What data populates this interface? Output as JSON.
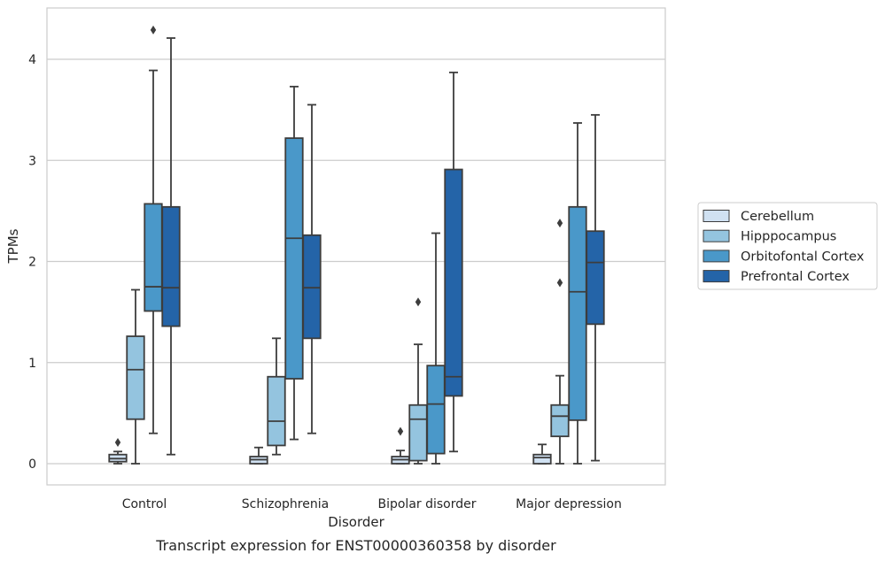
{
  "chart_data": {
    "type": "box",
    "title": "",
    "caption": "Transcript expression for ENST00000360358 by disorder",
    "xlabel": "Disorder",
    "ylabel": "TPMs",
    "ylim": [
      -0.21,
      4.52
    ],
    "yticks": [
      0,
      1,
      2,
      3,
      4
    ],
    "grid": true,
    "legend_position": "right",
    "categories": [
      "Control",
      "Schizophrenia",
      "Bipolar disorder",
      "Major depression"
    ],
    "series": [
      {
        "name": "Cerebellum",
        "color": "#d0e1f2",
        "boxes": [
          {
            "whisker_low": 0.0,
            "q1": 0.02,
            "median": 0.05,
            "q3": 0.09,
            "whisker_high": 0.12,
            "outliers": [
              0.21
            ]
          },
          {
            "whisker_low": 0.0,
            "q1": 0.0,
            "median": 0.04,
            "q3": 0.07,
            "whisker_high": 0.16,
            "outliers": []
          },
          {
            "whisker_low": 0.0,
            "q1": 0.0,
            "median": 0.04,
            "q3": 0.07,
            "whisker_high": 0.13,
            "outliers": [
              0.32
            ]
          },
          {
            "whisker_low": 0.0,
            "q1": 0.0,
            "median": 0.06,
            "q3": 0.09,
            "whisker_high": 0.19,
            "outliers": []
          }
        ]
      },
      {
        "name": "Hipppocampus",
        "color": "#94c4df",
        "boxes": [
          {
            "whisker_low": 0.0,
            "q1": 0.44,
            "median": 0.93,
            "q3": 1.26,
            "whisker_high": 1.72,
            "outliers": []
          },
          {
            "whisker_low": 0.09,
            "q1": 0.18,
            "median": 0.42,
            "q3": 0.86,
            "whisker_high": 1.24,
            "outliers": []
          },
          {
            "whisker_low": 0.0,
            "q1": 0.03,
            "median": 0.44,
            "q3": 0.58,
            "whisker_high": 1.18,
            "outliers": [
              1.6
            ]
          },
          {
            "whisker_low": 0.0,
            "q1": 0.27,
            "median": 0.47,
            "q3": 0.58,
            "whisker_high": 0.87,
            "outliers": [
              1.79,
              2.38
            ]
          }
        ]
      },
      {
        "name": "Orbitofontal Cortex",
        "color": "#4a98c9",
        "boxes": [
          {
            "whisker_low": 0.3,
            "q1": 1.51,
            "median": 1.75,
            "q3": 2.57,
            "whisker_high": 3.89,
            "outliers": [
              4.29
            ]
          },
          {
            "whisker_low": 0.24,
            "q1": 0.84,
            "median": 2.23,
            "q3": 3.22,
            "whisker_high": 3.73,
            "outliers": []
          },
          {
            "whisker_low": 0.0,
            "q1": 0.1,
            "median": 0.59,
            "q3": 0.97,
            "whisker_high": 2.28,
            "outliers": []
          },
          {
            "whisker_low": 0.0,
            "q1": 0.43,
            "median": 1.7,
            "q3": 2.54,
            "whisker_high": 3.37,
            "outliers": []
          }
        ]
      },
      {
        "name": "Prefrontal Cortex",
        "color": "#2464a8",
        "boxes": [
          {
            "whisker_low": 0.09,
            "q1": 1.36,
            "median": 1.74,
            "q3": 2.54,
            "whisker_high": 4.21,
            "outliers": []
          },
          {
            "whisker_low": 0.3,
            "q1": 1.24,
            "median": 1.74,
            "q3": 2.26,
            "whisker_high": 3.55,
            "outliers": []
          },
          {
            "whisker_low": 0.12,
            "q1": 0.67,
            "median": 0.86,
            "q3": 2.91,
            "whisker_high": 3.87,
            "outliers": []
          },
          {
            "whisker_low": 0.03,
            "q1": 1.38,
            "median": 1.99,
            "q3": 2.3,
            "whisker_high": 3.45,
            "outliers": []
          }
        ]
      }
    ]
  }
}
